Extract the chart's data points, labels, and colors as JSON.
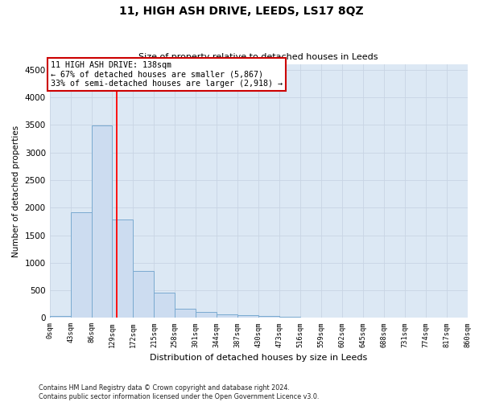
{
  "title": "11, HIGH ASH DRIVE, LEEDS, LS17 8QZ",
  "subtitle": "Size of property relative to detached houses in Leeds",
  "xlabel": "Distribution of detached houses by size in Leeds",
  "ylabel": "Number of detached properties",
  "bar_color": "#ccdcf0",
  "bar_edge_color": "#7aaad0",
  "grid_color": "#c8d4e4",
  "background_color": "#dce8f4",
  "annotation_box_color": "#cc0000",
  "annotation_text_line1": "11 HIGH ASH DRIVE: 138sqm",
  "annotation_text_line2": "← 67% of detached houses are smaller (5,867)",
  "annotation_text_line3": "33% of semi-detached houses are larger (2,918) →",
  "property_line_x": 138,
  "ylim": [
    0,
    4600
  ],
  "yticks": [
    0,
    500,
    1000,
    1500,
    2000,
    2500,
    3000,
    3500,
    4000,
    4500
  ],
  "bin_edges": [
    0,
    43,
    86,
    129,
    172,
    215,
    258,
    301,
    344,
    387,
    430,
    473,
    516,
    559,
    602,
    645,
    688,
    731,
    774,
    817,
    860
  ],
  "bar_heights": [
    30,
    1920,
    3490,
    1780,
    855,
    455,
    160,
    100,
    70,
    50,
    30,
    25,
    5,
    3,
    2,
    1,
    1,
    0,
    0,
    0
  ],
  "footnote_line1": "Contains HM Land Registry data © Crown copyright and database right 2024.",
  "footnote_line2": "Contains public sector information licensed under the Open Government Licence v3.0.",
  "fig_width": 6.0,
  "fig_height": 5.0,
  "dpi": 100
}
